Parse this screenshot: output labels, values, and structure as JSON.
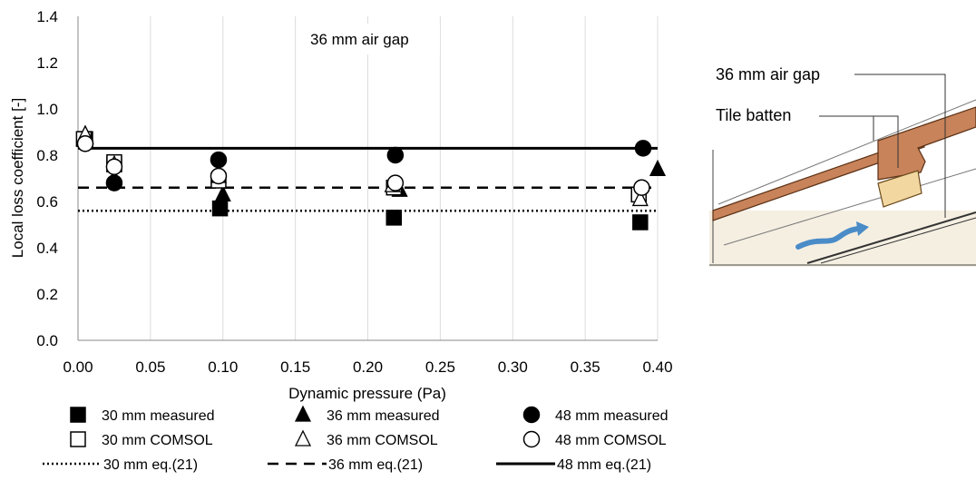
{
  "chart_data": {
    "type": "scatter",
    "title": "",
    "annotation": "36 mm air gap",
    "xlabel": "Dynamic pressure (Pa)",
    "ylabel": "Local loss coefficient [-]",
    "xlim": [
      0.0,
      0.4
    ],
    "ylim": [
      0.0,
      1.4
    ],
    "x_ticks": [
      "0.00",
      "0.05",
      "0.10",
      "0.15",
      "0.20",
      "0.25",
      "0.30",
      "0.35",
      "0.40"
    ],
    "y_ticks": [
      "0.0",
      "0.2",
      "0.4",
      "0.6",
      "0.8",
      "1.0",
      "1.2",
      "1.4"
    ],
    "grid": "vertical",
    "legend_position": "bottom",
    "series": [
      {
        "name": "30 mm measured",
        "marker": "square-filled",
        "points": [
          [
            0.005,
            0.87
          ],
          [
            0.025,
            0.76
          ],
          [
            0.098,
            0.57
          ],
          [
            0.218,
            0.53
          ],
          [
            0.388,
            0.51
          ]
        ]
      },
      {
        "name": "36 mm measured",
        "marker": "triangle-filled",
        "points": [
          [
            0.005,
            0.89
          ],
          [
            0.025,
            0.7
          ],
          [
            0.1,
            0.63
          ],
          [
            0.222,
            0.65
          ],
          [
            0.4,
            0.74
          ]
        ]
      },
      {
        "name": "48 mm measured",
        "marker": "circle-filled",
        "points": [
          [
            0.005,
            0.85
          ],
          [
            0.025,
            0.68
          ],
          [
            0.097,
            0.78
          ],
          [
            0.219,
            0.8
          ],
          [
            0.39,
            0.83
          ]
        ]
      },
      {
        "name": "30 mm COMSOL",
        "marker": "square-open",
        "points": [
          [
            0.004,
            0.87
          ],
          [
            0.025,
            0.77
          ],
          [
            0.097,
            0.69
          ],
          [
            0.218,
            0.66
          ],
          [
            0.387,
            0.63
          ]
        ]
      },
      {
        "name": "36 mm COMSOL",
        "marker": "triangle-open",
        "points": [
          [
            0.005,
            0.89
          ],
          [
            0.025,
            0.76
          ],
          [
            0.097,
            0.71
          ],
          [
            0.217,
            0.67
          ],
          [
            0.388,
            0.61
          ]
        ]
      },
      {
        "name": "48 mm COMSOL",
        "marker": "circle-open",
        "points": [
          [
            0.005,
            0.85
          ],
          [
            0.025,
            0.75
          ],
          [
            0.097,
            0.71
          ],
          [
            0.219,
            0.68
          ],
          [
            0.389,
            0.66
          ]
        ]
      },
      {
        "name": "30 mm eq.(21)",
        "line": "dotted",
        "value": 0.56
      },
      {
        "name": "36 mm eq.(21)",
        "line": "dashed",
        "value": 0.66
      },
      {
        "name": "48 mm eq.(21)",
        "line": "solid",
        "value": 0.83
      }
    ]
  },
  "diagram": {
    "labels": [
      "36 mm air gap",
      "Tile batten"
    ],
    "colors": {
      "wood": "#c8835a",
      "batten": "#f2d8a0",
      "arrow": "#4a8cc7",
      "underlay": "#f5efe2"
    }
  }
}
